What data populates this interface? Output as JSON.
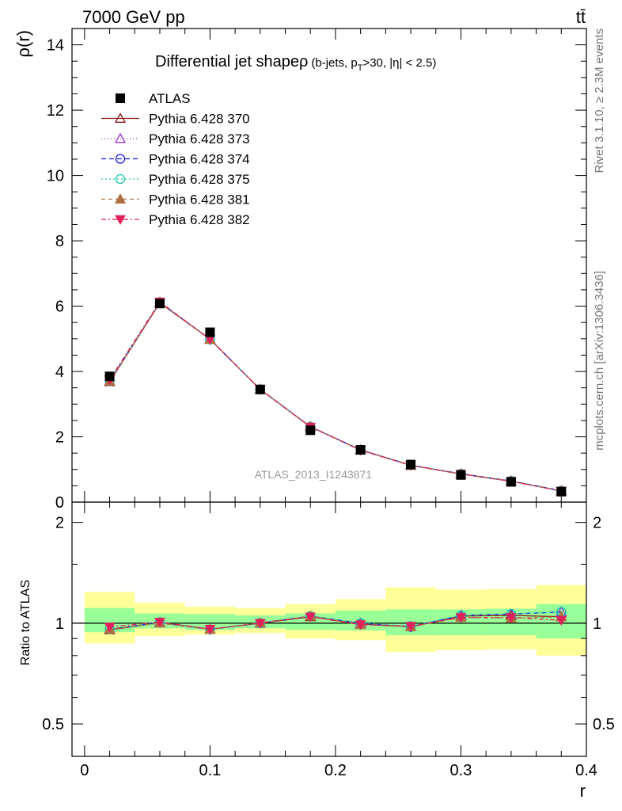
{
  "header": {
    "left": "7000 GeV pp",
    "right": "tt̄"
  },
  "side_labels": {
    "rivet": "Rivet 3.1.10, ≥ 2.3M events",
    "mcplots": "mcplots.cern.ch [arXiv:1306.3436]"
  },
  "chart_data": [
    {
      "type": "scatter",
      "panel": "main",
      "title": "Differential jet shape",
      "title_symbol": "ρ",
      "title_selection": "(b-jets, p",
      "title_sub": "T",
      "title_selection_end": ">30, |η| < 2.5)",
      "ylabel": "ρ(r)",
      "xlabel": "r",
      "xlim": [
        -0.01,
        0.4
      ],
      "ylim": [
        0,
        14.5
      ],
      "y_ticks": [
        0,
        2,
        4,
        6,
        8,
        10,
        12,
        14
      ],
      "y_tick_labels": [
        "0",
        "2",
        "4",
        "6",
        "8",
        "10",
        "12",
        "14"
      ],
      "watermark": "ATLAS_2013_I1243871",
      "legend_position": "top-left",
      "x": [
        0.02,
        0.06,
        0.1,
        0.14,
        0.18,
        0.22,
        0.26,
        0.3,
        0.34,
        0.38
      ],
      "data": {
        "name": "ATLAS",
        "color": "#000000",
        "marker": "square",
        "values": [
          3.85,
          6.08,
          5.2,
          3.45,
          2.2,
          1.6,
          1.15,
          0.83,
          0.62,
          0.32
        ]
      },
      "series": [
        {
          "name": "Pythia 6.428 370",
          "color": "#8b1a1a",
          "dash": "",
          "marker": "triangle-open",
          "values": [
            3.68,
            6.1,
            4.99,
            3.45,
            2.31,
            1.6,
            1.13,
            0.86,
            0.64,
            0.34
          ]
        },
        {
          "name": "Pythia 6.428 373",
          "color": "#9932cc",
          "dash": "1,3",
          "marker": "triangle-open",
          "values": [
            3.7,
            6.12,
            4.98,
            3.45,
            2.31,
            1.6,
            1.12,
            0.87,
            0.65,
            0.35
          ]
        },
        {
          "name": "Pythia 6.428 374",
          "color": "#1a1ad6",
          "dash": "6,4",
          "marker": "circle-open",
          "values": [
            3.7,
            6.12,
            4.98,
            3.45,
            2.31,
            1.6,
            1.13,
            0.87,
            0.65,
            0.35
          ]
        },
        {
          "name": "Pythia 6.428 375",
          "color": "#20c8b0",
          "dash": "2,3",
          "marker": "circle-open",
          "values": [
            3.7,
            6.12,
            4.98,
            3.45,
            2.31,
            1.6,
            1.13,
            0.87,
            0.65,
            0.35
          ]
        },
        {
          "name": "Pythia 6.428 381",
          "color": "#b07040",
          "dash": "5,4",
          "marker": "triangle-filled",
          "values": [
            3.7,
            6.1,
            4.98,
            3.46,
            2.31,
            1.59,
            1.12,
            0.86,
            0.64,
            0.34
          ]
        },
        {
          "name": "Pythia 6.428 382",
          "color": "#e0205a",
          "dash": "6,3,2,3",
          "marker": "triangle-down-filled",
          "values": [
            3.75,
            6.13,
            4.99,
            3.45,
            2.3,
            1.59,
            1.13,
            0.86,
            0.64,
            0.34
          ]
        }
      ]
    },
    {
      "type": "scatter",
      "panel": "ratio",
      "ylabel": "Ratio to ATLAS",
      "xlabel": "r",
      "xlim": [
        -0.01,
        0.4
      ],
      "ylim": [
        0.4,
        2.3
      ],
      "log_y": true,
      "y_ticks": [
        0.5,
        1,
        2
      ],
      "y_tick_labels": [
        "0.5",
        "1",
        "2"
      ],
      "x_ticks": [
        0,
        0.1,
        0.2,
        0.3,
        0.4
      ],
      "x_tick_labels": [
        "0",
        "0.1",
        "0.2",
        "0.3",
        "0.4"
      ],
      "x": [
        0.02,
        0.06,
        0.1,
        0.14,
        0.18,
        0.22,
        0.26,
        0.3,
        0.34,
        0.38
      ],
      "bin_edges": [
        0.0,
        0.04,
        0.08,
        0.12,
        0.16,
        0.2,
        0.24,
        0.28,
        0.32,
        0.36,
        0.4
      ],
      "band_stat": {
        "color": "#99ff99",
        "low": [
          0.94,
          0.965,
          0.955,
          0.965,
          0.955,
          0.95,
          0.92,
          0.92,
          0.92,
          0.9
        ],
        "high": [
          1.11,
          1.07,
          1.065,
          1.055,
          1.07,
          1.09,
          1.1,
          1.1,
          1.105,
          1.14
        ]
      },
      "band_total": {
        "color": "#ffff99",
        "low": [
          0.87,
          0.915,
          0.925,
          0.935,
          0.9,
          0.89,
          0.82,
          0.83,
          0.835,
          0.8
        ],
        "high": [
          1.24,
          1.15,
          1.12,
          1.11,
          1.14,
          1.18,
          1.28,
          1.26,
          1.265,
          1.3
        ]
      },
      "series": [
        {
          "name": "Pythia 6.428 370",
          "values": [
            0.955,
            1.005,
            0.96,
            1.0,
            1.045,
            0.995,
            0.975,
            1.05,
            1.055,
            1.045
          ]
        },
        {
          "name": "Pythia 6.428 373",
          "values": [
            0.96,
            1.005,
            0.958,
            1.0,
            1.05,
            1.0,
            0.975,
            1.055,
            1.065,
            1.08
          ]
        },
        {
          "name": "Pythia 6.428 374",
          "values": [
            0.96,
            1.005,
            0.958,
            1.0,
            1.05,
            1.0,
            0.975,
            1.055,
            1.065,
            1.08
          ]
        },
        {
          "name": "Pythia 6.428 375",
          "values": [
            0.96,
            1.005,
            0.958,
            1.0,
            1.05,
            1.0,
            0.98,
            1.055,
            1.065,
            1.08
          ]
        },
        {
          "name": "Pythia 6.428 381",
          "values": [
            0.96,
            1.0,
            0.958,
            1.003,
            1.05,
            0.99,
            0.975,
            1.04,
            1.035,
            1.045
          ]
        },
        {
          "name": "Pythia 6.428 382",
          "values": [
            0.975,
            1.008,
            0.96,
            1.0,
            1.045,
            0.99,
            0.98,
            1.04,
            1.04,
            1.02
          ]
        }
      ]
    }
  ]
}
